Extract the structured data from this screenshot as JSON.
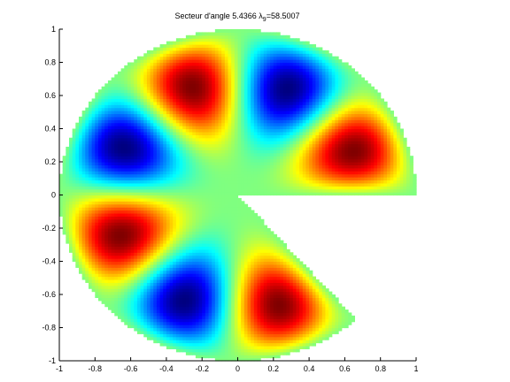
{
  "chart_data": {
    "type": "sector-eigenmode",
    "title": {
      "text": "Secteur d'angle 5.4366",
      "symbol": "λ",
      "subscript": "9",
      "value_text": "=58.5007"
    },
    "sector_angle": 5.4366,
    "eigenvalue": 58.5007,
    "colormap": "jet",
    "xlim": [
      -1,
      1
    ],
    "ylim": [
      -1,
      1
    ],
    "xticks": [
      -1,
      -0.8,
      -0.6,
      -0.4,
      -0.2,
      0,
      0.2,
      0.4,
      0.6,
      0.8,
      1
    ],
    "yticks": [
      -1,
      -0.8,
      -0.6,
      -0.4,
      -0.2,
      0,
      0.2,
      0.4,
      0.6,
      0.8,
      1
    ]
  }
}
